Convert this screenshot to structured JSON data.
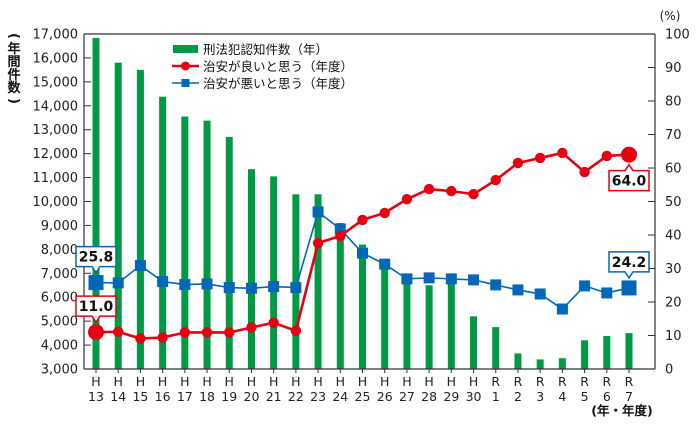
{
  "chart_data": {
    "type": "bar+line",
    "title": "",
    "categories": [
      "H\n13",
      "H\n14",
      "H\n15",
      "H\n16",
      "H\n17",
      "H\n18",
      "H\n19",
      "H\n20",
      "H\n21",
      "H\n22",
      "H\n23",
      "H\n24",
      "H\n25",
      "H\n26",
      "H\n27",
      "H\n28",
      "H\n29",
      "H\n30",
      "R\n1",
      "R\n2",
      "R\n3",
      "R\n4",
      "R\n5",
      "R\n6",
      "R\n7"
    ],
    "category_era": [
      "H",
      "H",
      "H",
      "H",
      "H",
      "H",
      "H",
      "H",
      "H",
      "H",
      "H",
      "H",
      "H",
      "H",
      "H",
      "H",
      "H",
      "H",
      "R",
      "R",
      "R",
      "R",
      "R",
      "R",
      "R"
    ],
    "category_num": [
      "13",
      "14",
      "15",
      "16",
      "17",
      "18",
      "19",
      "20",
      "21",
      "22",
      "23",
      "24",
      "25",
      "26",
      "27",
      "28",
      "29",
      "30",
      "1",
      "2",
      "3",
      "4",
      "5",
      "6",
      "7"
    ],
    "xlabel": "(年・年度)",
    "ylabel_left": "(年間件数)",
    "ylabel_right": "(%)",
    "ylim_left": [
      3000,
      17000
    ],
    "yticks_left": [
      3000,
      4000,
      5000,
      6000,
      7000,
      8000,
      9000,
      10000,
      11000,
      12000,
      13000,
      14000,
      15000,
      16000,
      17000
    ],
    "ytick_labels_left": [
      "3,000",
      "4,000",
      "5,000",
      "6,000",
      "7,000",
      "8,000",
      "9,000",
      "10,000",
      "11,000",
      "12,000",
      "13,000",
      "14,000",
      "15,000",
      "16,000",
      "17,000"
    ],
    "ylim_right": [
      0,
      100
    ],
    "yticks_right": [
      0,
      10,
      20,
      30,
      40,
      50,
      60,
      70,
      80,
      90,
      100
    ],
    "grid": false,
    "legend_position": "top-left-inside",
    "series": [
      {
        "name": "刑法犯認知件数（年）",
        "type": "bar",
        "axis": "left",
        "color": "#009944",
        "values": [
          16830,
          15800,
          15500,
          14380,
          13550,
          13380,
          12700,
          11350,
          11050,
          10300,
          10300,
          9100,
          8200,
          7350,
          6650,
          6500,
          6700,
          5200,
          4750,
          3650,
          3400,
          3450,
          4200,
          4380,
          4500
        ]
      },
      {
        "name": "治安が良いと思う（年度）",
        "type": "line",
        "axis": "right",
        "color": "#e60012",
        "values": [
          11.0,
          11.1,
          9.1,
          9.4,
          10.9,
          10.9,
          10.9,
          12.4,
          13.8,
          11.4,
          37.6,
          39.7,
          44.5,
          46.6,
          50.7,
          53.7,
          53.1,
          52.2,
          56.4,
          61.5,
          63.0,
          64.5,
          58.8,
          63.6,
          64.0
        ]
      },
      {
        "name": "治安が悪いと思う（年度）",
        "type": "line",
        "axis": "right",
        "color": "#0068b7",
        "values": [
          25.8,
          25.7,
          30.9,
          26.1,
          25.2,
          25.4,
          24.3,
          24.1,
          24.6,
          24.3,
          46.9,
          41.8,
          34.6,
          31.3,
          26.9,
          27.2,
          26.9,
          26.6,
          25.1,
          23.6,
          22.4,
          17.9,
          24.8,
          22.7,
          24.2
        ]
      }
    ],
    "annotations": [
      {
        "series": "治安が悪いと思う（年度）",
        "index": 0,
        "text": "25.8"
      },
      {
        "series": "治安が良いと思う（年度）",
        "index": 0,
        "text": "11.0"
      },
      {
        "series": "治安が良いと思う（年度）",
        "index": 24,
        "text": "64.0"
      },
      {
        "series": "治安が悪いと思う（年度）",
        "index": 24,
        "text": "24.2"
      }
    ]
  },
  "legend": {
    "items": [
      {
        "label": "刑法犯認知件数（年）",
        "kind": "bar",
        "color": "#009944"
      },
      {
        "label": "治安が良いと思う（年度）",
        "kind": "line-circle",
        "color": "#e60012"
      },
      {
        "label": "治安が悪いと思う（年度）",
        "kind": "line-square",
        "color": "#0068b7"
      }
    ]
  },
  "axis_labels": {
    "left": [
      "(",
      "年",
      "間",
      "件",
      "数",
      ")"
    ],
    "right": "(%)",
    "x": "(年・年度)"
  }
}
